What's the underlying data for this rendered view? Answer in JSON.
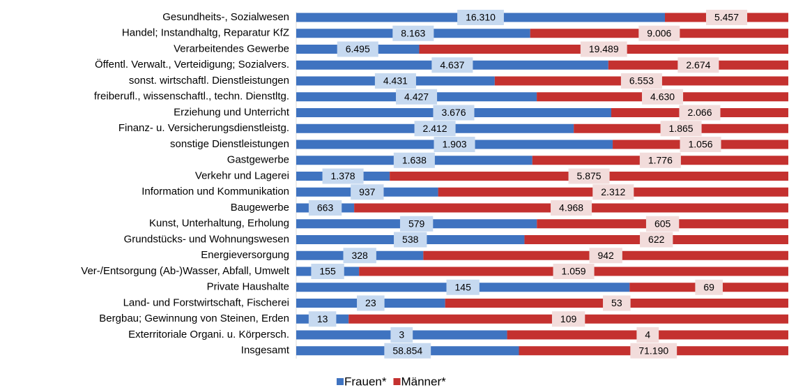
{
  "chart_data": {
    "type": "bar",
    "orientation": "horizontal",
    "stacked": true,
    "percent": true,
    "categories": [
      "Gesundheits-, Sozialwesen",
      "Handel; Instandhaltg, Reparatur KfZ",
      "Verarbeitendes Gewerbe",
      "Öffentl. Verwalt., Verteidigung; Sozialvers.",
      "sonst. wirtschaftl. Dienstleistungen",
      "freiberufl., wissenschaftl., techn. Dienstltg.",
      "Erziehung und Unterricht",
      "Finanz- u. Versicherungsdienstleistg.",
      "sonstige Dienstleistungen",
      "Gastgewerbe",
      "Verkehr und Lagerei",
      "Information und Kommunikation",
      "Baugewerbe",
      "Kunst, Unterhaltung, Erholung",
      "Grundstücks- und Wohnungswesen",
      "Energieversorgung",
      "Ver-/Entsorgung (Ab-)Wasser, Abfall, Umwelt",
      "Private Haushalte",
      "Land- und Forstwirtschaft, Fischerei",
      "Bergbau; Gewinnung von Steinen, Erden",
      "Exterritoriale Organi. u. Körpersch.",
      "Insgesamt"
    ],
    "series": [
      {
        "name": "Frauen*",
        "color": "#3f73c0",
        "label_bg": "#c6d9f0",
        "values": [
          16310,
          8163,
          6495,
          4637,
          4431,
          4427,
          3676,
          2412,
          1903,
          1638,
          1378,
          937,
          663,
          579,
          538,
          328,
          155,
          145,
          23,
          13,
          3,
          58854
        ],
        "value_labels": [
          "16.310",
          "8.163",
          "6.495",
          "4.637",
          "4.431",
          "4.427",
          "3.676",
          "2.412",
          "1.903",
          "1.638",
          "1.378",
          "937",
          "663",
          "579",
          "538",
          "328",
          "155",
          "145",
          "23",
          "13",
          "3",
          "58.854"
        ]
      },
      {
        "name": "Männer*",
        "color": "#c4312f",
        "label_bg": "#f2dcdb",
        "values": [
          5457,
          9006,
          19489,
          2674,
          6553,
          4630,
          2066,
          1865,
          1056,
          1776,
          5875,
          2312,
          4968,
          605,
          622,
          942,
          1059,
          69,
          53,
          109,
          4,
          71190
        ],
        "value_labels": [
          "5.457",
          "9.006",
          "19.489",
          "2.674",
          "6.553",
          "4.630",
          "2.066",
          "1.865",
          "1.056",
          "1.776",
          "5.875",
          "2.312",
          "4.968",
          "605",
          "622",
          "942",
          "1.059",
          "69",
          "53",
          "109",
          "4",
          "71.190"
        ]
      }
    ],
    "legend": "bottom"
  }
}
